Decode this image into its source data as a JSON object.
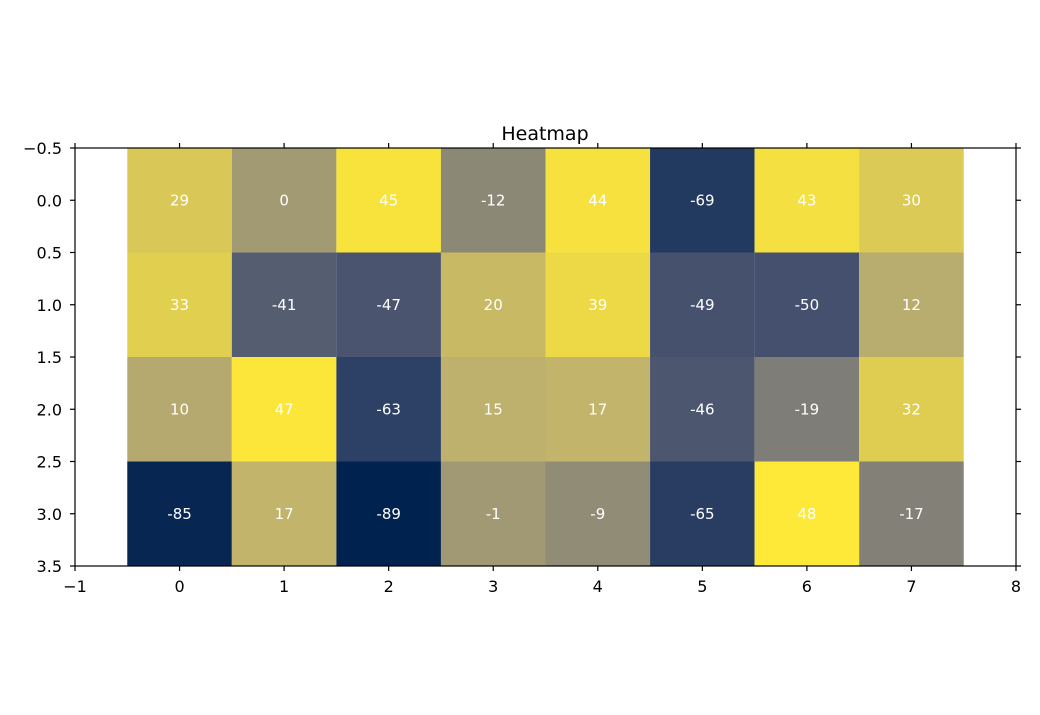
{
  "chart_data": {
    "type": "heatmap",
    "title": "Heatmap",
    "xlabel": "",
    "ylabel": "",
    "rows": [
      0,
      1,
      2,
      3
    ],
    "columns": [
      0,
      1,
      2,
      3,
      4,
      5,
      6,
      7
    ],
    "values": [
      [
        29,
        0,
        45,
        -12,
        44,
        -69,
        43,
        30
      ],
      [
        33,
        -41,
        -47,
        20,
        39,
        -49,
        -50,
        12
      ],
      [
        10,
        47,
        -63,
        15,
        17,
        -46,
        -19,
        32
      ],
      [
        -85,
        17,
        -89,
        -1,
        -9,
        -65,
        48,
        -17
      ]
    ],
    "xlim": [
      -1,
      8
    ],
    "ylim": [
      3.5,
      -0.5
    ],
    "xticks": [
      "−1",
      "0",
      "1",
      "2",
      "3",
      "4",
      "5",
      "6",
      "7",
      "8"
    ],
    "yticks": [
      "−0.5",
      "0.0",
      "0.5",
      "1.0",
      "1.5",
      "2.0",
      "2.5",
      "3.0",
      "3.5"
    ],
    "colormap": "cividis",
    "vmin": -89,
    "vmax": 48,
    "cell_text_color": "#ffffff",
    "grid": false,
    "legend": "none"
  }
}
